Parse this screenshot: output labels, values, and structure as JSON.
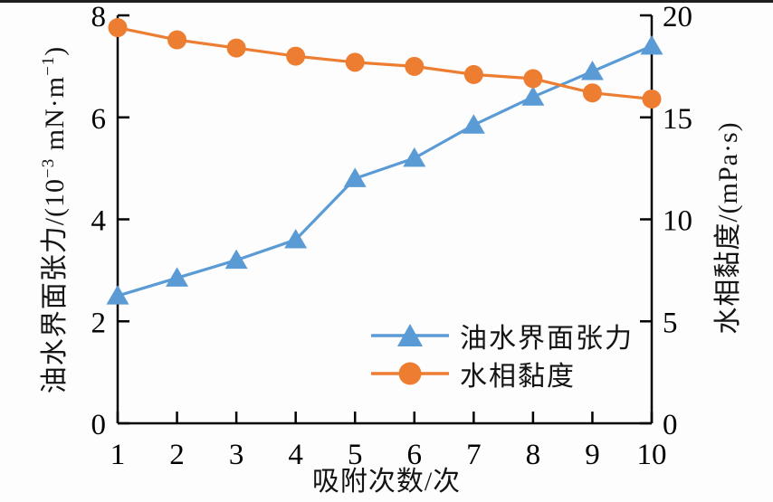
{
  "figure": {
    "background": "#fdfdfd",
    "top_border_color": "#1f1f1f",
    "axis_color": "#000000"
  },
  "chart_data": {
    "type": "line",
    "x": [
      1,
      2,
      3,
      4,
      5,
      6,
      7,
      8,
      9,
      10
    ],
    "xlim": [
      1,
      10
    ],
    "ylim_left": [
      0,
      8
    ],
    "ylim_right": [
      0,
      20
    ],
    "x_ticks": [
      1,
      2,
      3,
      4,
      5,
      6,
      7,
      8,
      9,
      10
    ],
    "y_ticks_left": [
      0,
      2,
      4,
      6,
      8
    ],
    "y_ticks_right": [
      0,
      5,
      10,
      15,
      20
    ],
    "xlabel": "吸附次数/次",
    "ylabel_left": "油水界面张力/(10⁻³ mN·m⁻¹)",
    "ylabel_right": "水相黏度/(mPa·s)",
    "grid": false,
    "legend_position": "inside-lower-center-right",
    "series": [
      {
        "name": "油水界面张力",
        "axis": "left",
        "color": "#5B9BD5",
        "marker": "triangle",
        "values": [
          2.5,
          2.85,
          3.2,
          3.6,
          4.8,
          5.2,
          5.85,
          6.4,
          6.9,
          7.4
        ]
      },
      {
        "name": "水相黏度",
        "axis": "right",
        "color": "#ED7D31",
        "marker": "circle",
        "values": [
          19.4,
          18.8,
          18.4,
          18.0,
          17.7,
          17.5,
          17.1,
          16.9,
          16.2,
          15.9
        ]
      }
    ]
  },
  "labels": {
    "x": "吸附次数/次",
    "y_right": "水相黏度/(mPa·s)",
    "y_left_parts": {
      "pre": "油水界面张力/(10",
      "sup1": "−3",
      "mid": " mN·m",
      "sup2": "−1",
      "post": ")"
    }
  },
  "legend": {
    "items": [
      {
        "label": "油水界面张力",
        "color": "#5B9BD5",
        "marker": "triangle"
      },
      {
        "label": "水相黏度",
        "color": "#ED7D31",
        "marker": "circle"
      }
    ]
  }
}
